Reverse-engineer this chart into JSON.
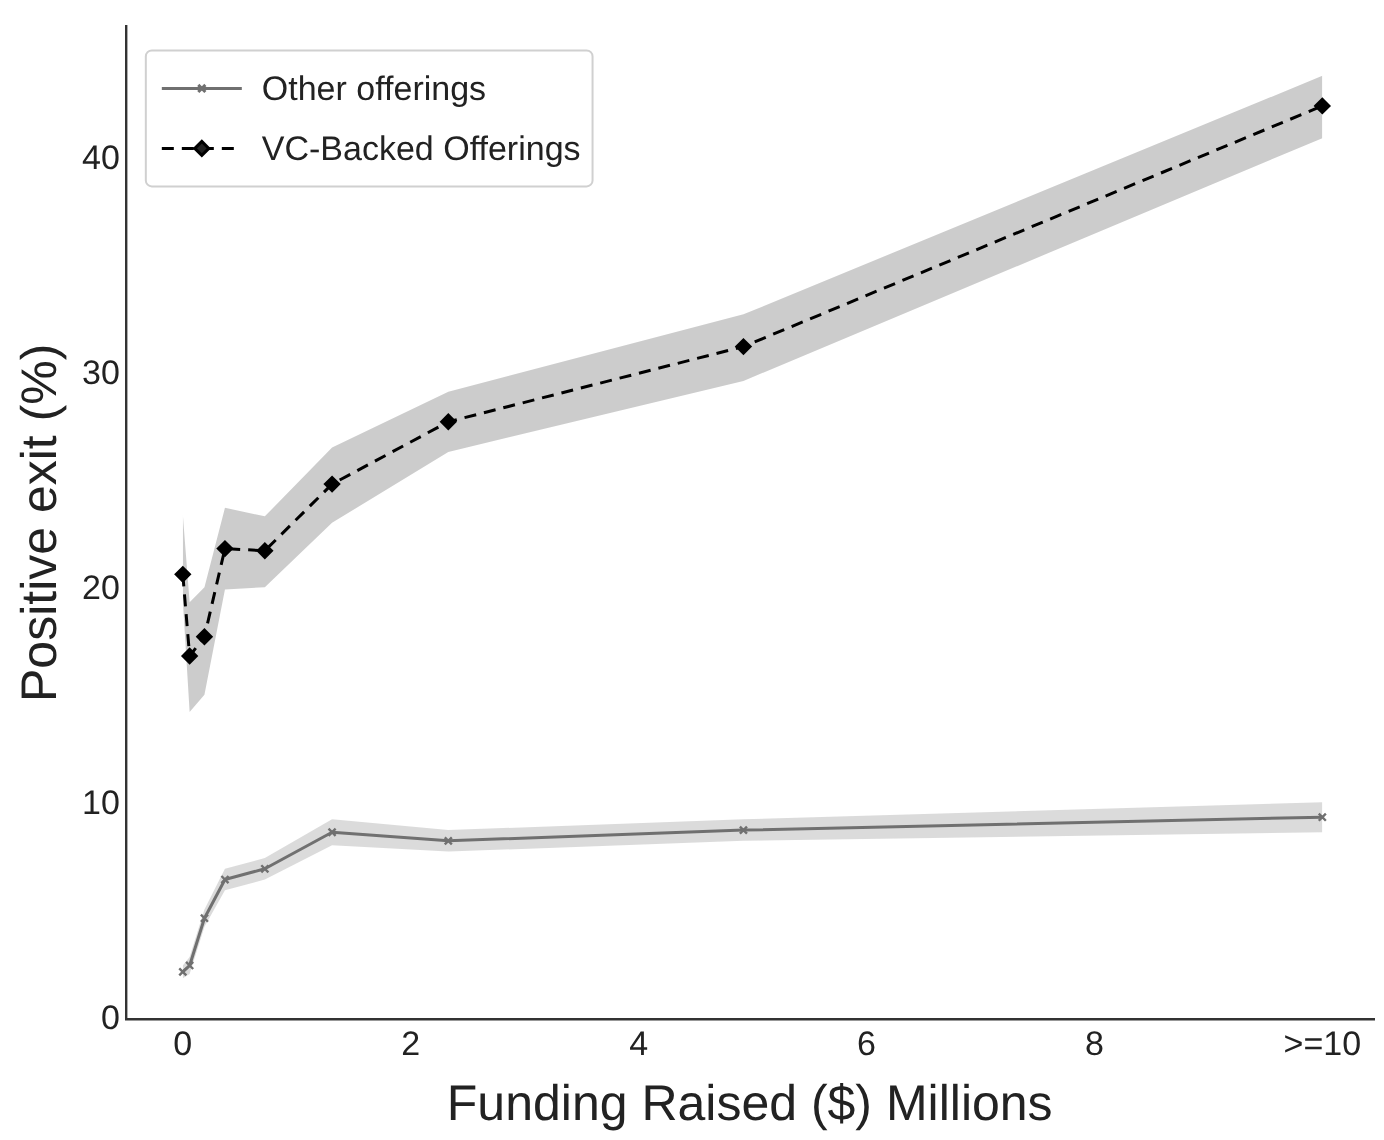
{
  "chart_data": {
    "type": "line",
    "xlabel": "Funding Raised ($) Millions",
    "ylabel": "Positive exit (%)",
    "x": [
      0.0,
      0.06,
      0.19,
      0.37,
      0.72,
      1.31,
      2.33,
      4.92,
      10.0
    ],
    "series": [
      {
        "name": "Other offerings",
        "color": "#707070",
        "marker": "cross",
        "line_style": "solid",
        "values": [
          2.2,
          2.5,
          4.7,
          6.5,
          7.0,
          8.7,
          8.3,
          8.8,
          9.4
        ],
        "lower": [
          1.9,
          2.1,
          4.3,
          6.0,
          6.5,
          8.1,
          7.8,
          8.3,
          8.7
        ],
        "upper": [
          2.5,
          2.9,
          5.1,
          7.0,
          7.5,
          9.3,
          8.8,
          9.3,
          10.1
        ]
      },
      {
        "name": "VC-Backed Offerings",
        "color": "#000000",
        "marker": "diamond",
        "line_style": "dashed",
        "values": [
          20.7,
          16.9,
          17.8,
          21.9,
          21.8,
          24.9,
          27.8,
          31.3,
          42.5
        ],
        "lower": [
          19.5,
          14.3,
          15.1,
          20.0,
          20.1,
          23.1,
          26.4,
          29.7,
          41.0
        ],
        "upper": [
          23.5,
          19.4,
          20.1,
          23.8,
          23.4,
          26.6,
          29.2,
          32.8,
          43.9
        ]
      }
    ],
    "xlim": [
      -0.5,
      10.45
    ],
    "xticks": [
      0,
      2,
      4,
      6,
      8,
      {
        "value": 10,
        "label": ">=10"
      }
    ],
    "ylim": [
      0,
      46.2
    ],
    "yticks": [
      0,
      10,
      20,
      30,
      40
    ],
    "grid": false,
    "legend": "top left"
  }
}
